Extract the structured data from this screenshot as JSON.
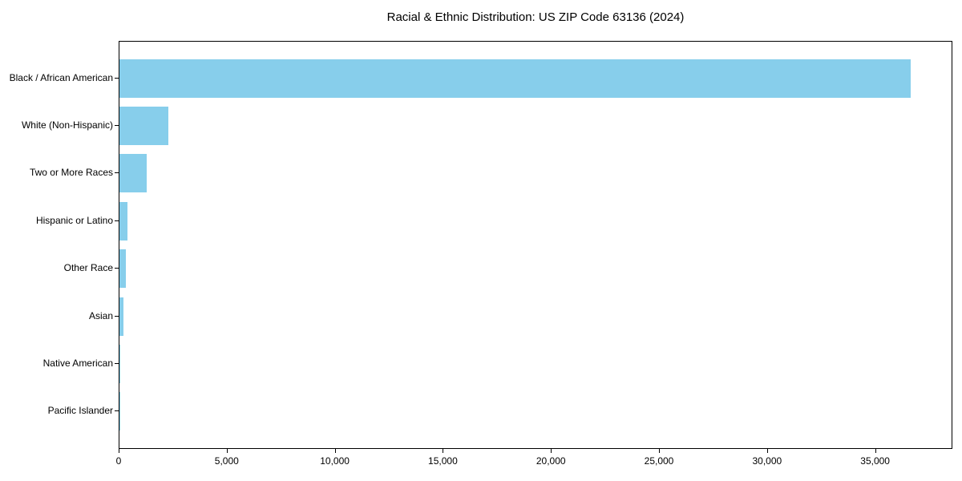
{
  "chart_data": {
    "type": "bar",
    "orientation": "horizontal",
    "title": "Racial & Ethnic Distribution: US ZIP Code 63136 (2024)",
    "categories": [
      "Black / African American",
      "White (Non-Hispanic)",
      "Two or More Races",
      "Hispanic or Latino",
      "Other Race",
      "Asian",
      "Native American",
      "Pacific Islander"
    ],
    "values": [
      36600,
      2260,
      1260,
      385,
      285,
      180,
      40,
      8
    ],
    "xlabel": "",
    "ylabel": "",
    "xlim": [
      0,
      38500
    ],
    "xticks": [
      0,
      5000,
      10000,
      15000,
      20000,
      25000,
      30000,
      35000
    ],
    "xtick_labels": [
      "0",
      "5,000",
      "10,000",
      "15,000",
      "20,000",
      "25,000",
      "30,000",
      "35,000"
    ],
    "bar_color": "#87CEEB",
    "background_color": "#ffffff",
    "axis_color": "#000000",
    "grid": false,
    "legend": null
  }
}
